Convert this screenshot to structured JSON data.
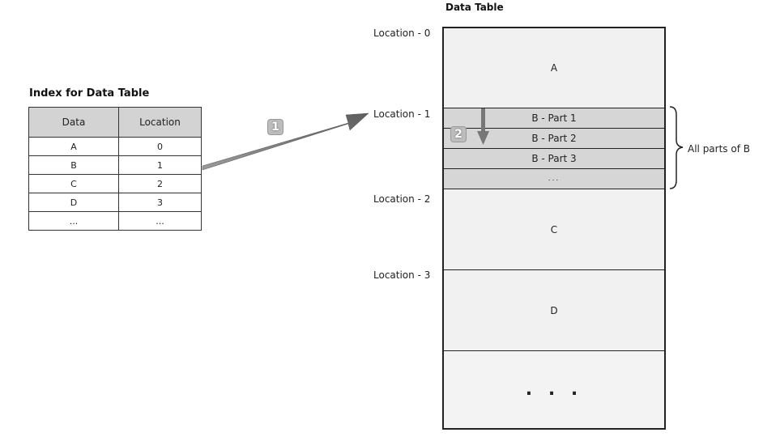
{
  "index": {
    "title": "Index for Data Table",
    "headers": [
      "Data",
      "Location"
    ],
    "rows": [
      [
        "A",
        "0"
      ],
      [
        "B",
        "1"
      ],
      [
        "C",
        "2"
      ],
      [
        "D",
        "3"
      ],
      [
        "...",
        "..."
      ]
    ]
  },
  "data_table": {
    "title": "Data Table",
    "locations": [
      "Location - 0",
      "Location - 1",
      "Location - 2",
      "Location - 3"
    ],
    "segments": {
      "a": "A",
      "b_parts": [
        "B - Part 1",
        "B - Part 2",
        "B - Part 3",
        "..."
      ],
      "c": "C",
      "d": "D",
      "end": ". . ."
    },
    "brace_label": "All parts of B"
  },
  "steps": [
    "1",
    "2"
  ],
  "colors": {
    "header_fill": "#d3d3d3",
    "part_fill": "#d6d6d6",
    "body_fill": "#f1f1f1",
    "arrow": "#777777"
  }
}
